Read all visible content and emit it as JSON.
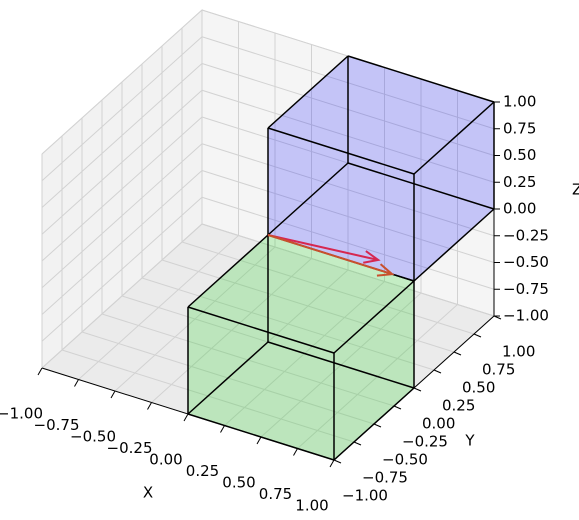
{
  "chart_data": {
    "type": "voxels3d",
    "xlabel": "X",
    "ylabel": "Y",
    "zlabel": "Z",
    "xlim": [
      -1,
      1
    ],
    "ylim": [
      -1,
      1
    ],
    "zlim": [
      -1,
      1
    ],
    "xticks": [
      {
        "value": -1,
        "label": "−1.00"
      },
      {
        "value": -0.75,
        "label": "−0.75"
      },
      {
        "value": -0.5,
        "label": "−0.50"
      },
      {
        "value": -0.25,
        "label": "−0.25"
      },
      {
        "value": 0,
        "label": "0.00"
      },
      {
        "value": 0.25,
        "label": "0.25"
      },
      {
        "value": 0.5,
        "label": "0.50"
      },
      {
        "value": 0.75,
        "label": "0.75"
      },
      {
        "value": 1,
        "label": "1.00"
      }
    ],
    "yticks": [
      {
        "value": -1,
        "label": "−1.00"
      },
      {
        "value": -0.75,
        "label": "−0.75"
      },
      {
        "value": -0.5,
        "label": "−0.50"
      },
      {
        "value": -0.25,
        "label": "−0.25"
      },
      {
        "value": 0,
        "label": "0.00"
      },
      {
        "value": 0.25,
        "label": "0.25"
      },
      {
        "value": 0.5,
        "label": "0.50"
      },
      {
        "value": 0.75,
        "label": "0.75"
      },
      {
        "value": 1,
        "label": "1.00"
      }
    ],
    "zticks": [
      {
        "value": -1,
        "label": "−1.00"
      },
      {
        "value": -0.75,
        "label": "−0.75"
      },
      {
        "value": -0.5,
        "label": "−0.50"
      },
      {
        "value": -0.25,
        "label": "−0.25"
      },
      {
        "value": 0,
        "label": "0.00"
      },
      {
        "value": 0.25,
        "label": "0.25"
      },
      {
        "value": 0.5,
        "label": "0.50"
      },
      {
        "value": 0.75,
        "label": "0.75"
      },
      {
        "value": 1,
        "label": "1.00"
      }
    ],
    "grid": true,
    "boxes": [
      {
        "min": [
          0,
          -1,
          -1
        ],
        "max": [
          1,
          0,
          0
        ],
        "color": "#00cc00",
        "alpha": 0.2
      },
      {
        "min": [
          0,
          0,
          0
        ],
        "max": [
          1,
          1,
          1
        ],
        "color": "#0000ff",
        "alpha": 0.2
      }
    ],
    "arrows": [
      {
        "origin": [
          0,
          0,
          0
        ],
        "vector": [
          0.7,
          0.1,
          0
        ],
        "color": "#d62750"
      },
      {
        "origin": [
          0,
          0,
          0
        ],
        "vector": [
          0.85,
          0,
          0
        ],
        "color": "#c8502d"
      }
    ]
  }
}
